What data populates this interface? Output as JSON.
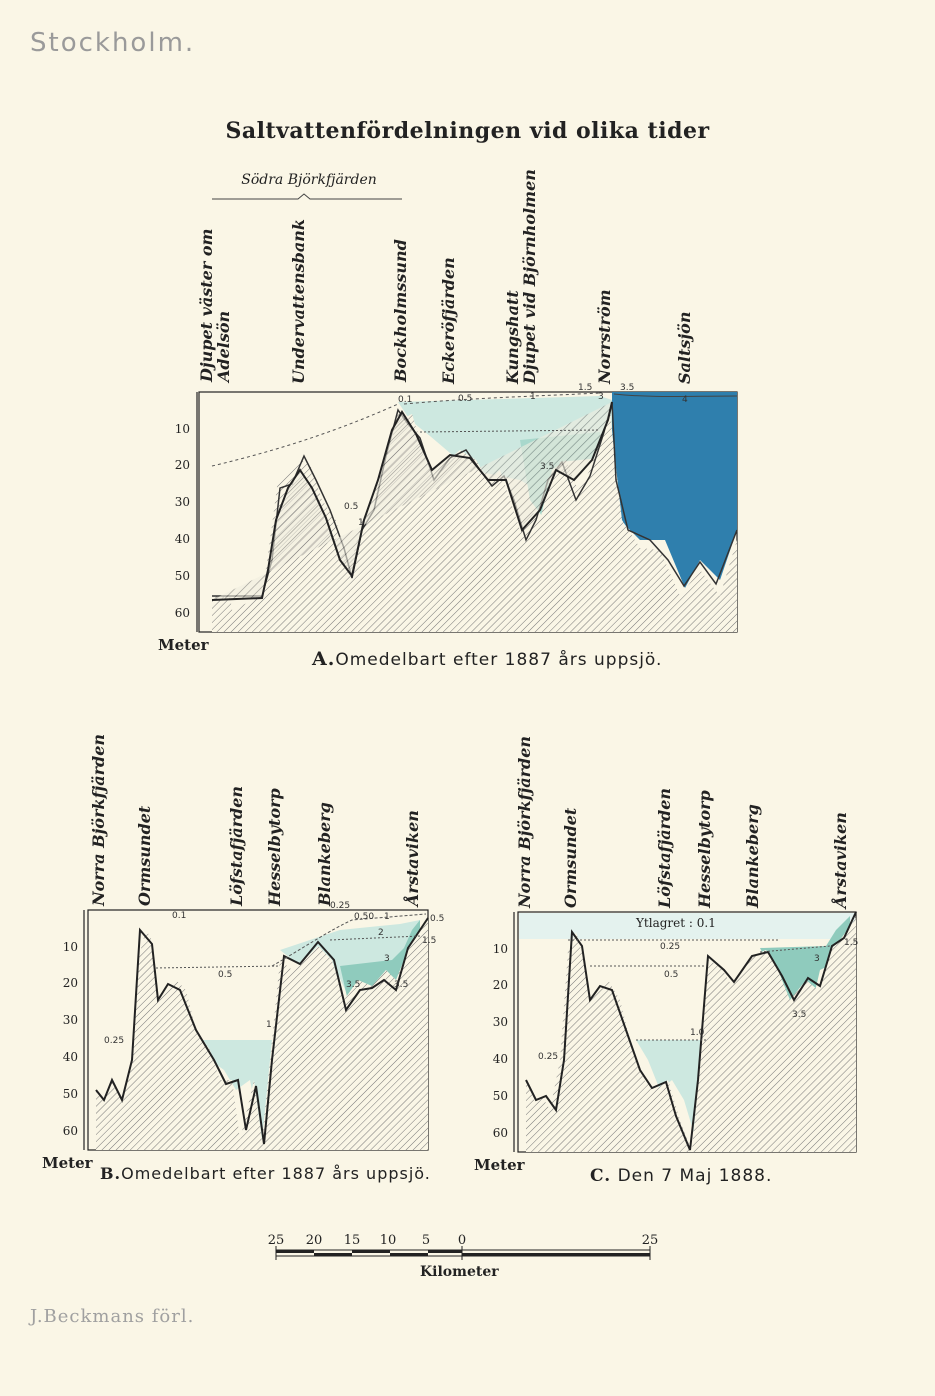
{
  "header": {
    "city": "Stockholm."
  },
  "footer": {
    "publisher": "J.Beckmans förl."
  },
  "title": "Saltvattenfördelningen vid olika tider",
  "subtitle": "Södra Björkfjärden",
  "colors": {
    "paper": "#faf6e6",
    "light_salt": "#cde8e0",
    "mid_salt": "#9fd2c8",
    "deep_salt": "#2f7fad",
    "ink": "#222222"
  },
  "panel_a": {
    "caption_letter": "A.",
    "caption_text": "Omedelbart efter 1887 års uppsjö.",
    "unit": "Meter",
    "depth_ticks": [
      "10",
      "20",
      "30",
      "40",
      "50",
      "60"
    ],
    "places": [
      "Djupet väster om\nAdelsön",
      "Undervattensbank",
      "Bockholmssund",
      "Eckeröfjärden",
      "Kungshatt\nDjupet vid Björnholmen",
      "Norrström",
      "Saltsjön"
    ],
    "isolines": [
      "0.1",
      "0.5",
      "1",
      "1.5",
      "3",
      "3.5",
      "4",
      "0.5",
      "1",
      "3.5"
    ]
  },
  "panel_b": {
    "caption_letter": "B.",
    "caption_text": "Omedelbart efter 1887 års uppsjö.",
    "unit": "Meter",
    "depth_ticks": [
      "10",
      "20",
      "30",
      "40",
      "50",
      "60"
    ],
    "places": [
      "Norra Björkfjärden",
      "Ormsundet",
      "Löfstafjärden",
      "Hesselbytorp",
      "Blankeberg",
      "Årstaviken"
    ],
    "isolines": [
      "0.1",
      "0.25",
      "0.50",
      "1",
      "2",
      "3",
      "3.5",
      "3.5",
      "0.5",
      "1",
      "0.25",
      "0.5",
      "1.5"
    ]
  },
  "panel_c": {
    "caption_letter": "C.",
    "caption_text": "Den 7 Maj 1888.",
    "unit": "Meter",
    "depth_ticks": [
      "10",
      "20",
      "30",
      "40",
      "50",
      "60"
    ],
    "places": [
      "Norra Björkfjärden",
      "Ormsundet",
      "Löfstafjärden",
      "Hesselbytorp",
      "Blankeberg",
      "Årstaviken"
    ],
    "surface_label": "Ytlagret : 0.1",
    "isolines": [
      "0.25",
      "0.5",
      "1.0",
      "0.25",
      "3",
      "3.5",
      "1.5"
    ]
  },
  "scale": {
    "numbers": [
      "25",
      "20",
      "15",
      "10",
      "5",
      "0",
      "25"
    ],
    "unit": "Kilometer"
  }
}
